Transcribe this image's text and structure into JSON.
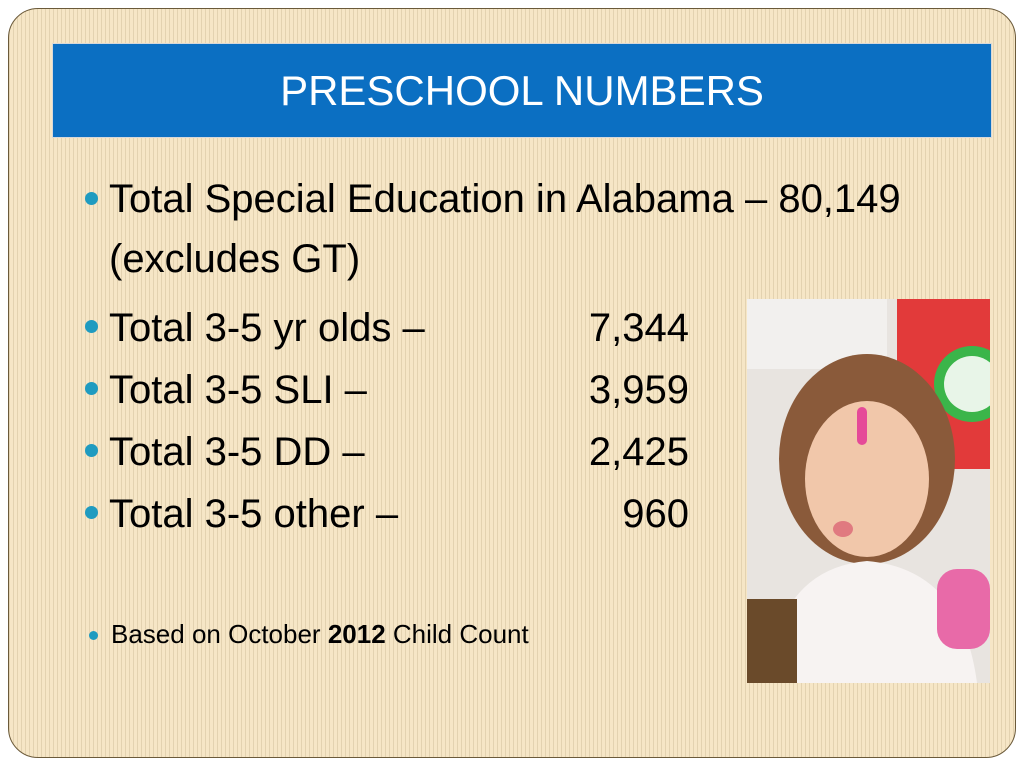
{
  "title": "PRESCHOOL NUMBERS",
  "bullets": [
    {
      "text": "Total Special Education in Alabama – 80,149 (excludes GT)"
    },
    {
      "label": "Total 3-5 yr olds –",
      "value": "7,344"
    },
    {
      "label": "Total 3-5 SLI –",
      "value": "3,959"
    },
    {
      "label": "Total 3-5 DD –",
      "value": "2,425"
    },
    {
      "label": "Total 3-5 other –",
      "value": "960"
    }
  ],
  "note": {
    "before": "Based on October",
    "year": "2012",
    "after": "Child Count"
  }
}
